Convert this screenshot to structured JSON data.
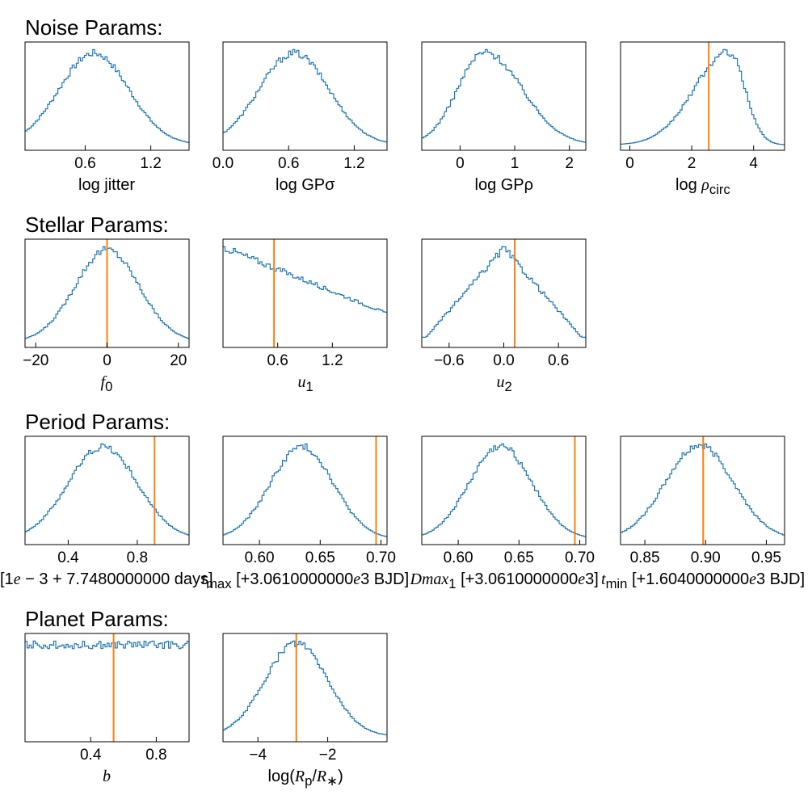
{
  "sections": [
    {
      "title": "Noise Params:"
    },
    {
      "title": "Stellar Params:"
    },
    {
      "title": "Period Params:"
    },
    {
      "title": "Planet Params:"
    }
  ],
  "colors": {
    "hist": "#1f77b4",
    "truth": "#ff7f0e"
  },
  "chart_data": [
    {
      "type": "histogram",
      "xlabel_html": "log jitter",
      "xlim": [
        0.05,
        1.55
      ],
      "ticks": [
        0.6,
        1.2
      ],
      "tick_labels": [
        "0.6",
        "1.2"
      ],
      "mode": 0.68,
      "shape": "gauss",
      "width": 0.32,
      "truth": null
    },
    {
      "type": "histogram",
      "xlabel_html": "log GPσ",
      "xlim": [
        0.0,
        1.5
      ],
      "ticks": [
        0.0,
        0.6,
        1.2
      ],
      "tick_labels": [
        "0.0",
        "0.6",
        "1.2"
      ],
      "mode": 0.65,
      "shape": "gauss",
      "width": 0.32,
      "truth": null
    },
    {
      "type": "histogram",
      "xlabel_html": "log GPρ",
      "xlim": [
        -0.7,
        2.3
      ],
      "ticks": [
        0,
        1,
        2
      ],
      "tick_labels": [
        "0",
        "1",
        "2"
      ],
      "mode": 0.45,
      "shape": "skew",
      "width": 0.55,
      "truth": null
    },
    {
      "type": "histogram",
      "xlabel_html": "log <i>ρ</i><sub>circ</sub>",
      "xlim": [
        -0.3,
        5.0
      ],
      "ticks": [
        0,
        2,
        4
      ],
      "tick_labels": [
        "0",
        "2",
        "4"
      ],
      "mode": 3.2,
      "shape": "leftskew",
      "width": 0.7,
      "truth": 2.55
    },
    {
      "type": "histogram",
      "xlabel_html": "<i>f</i><sub>0</sub>",
      "xlim": [
        -23,
        23
      ],
      "ticks": [
        -20,
        0,
        20
      ],
      "tick_labels": [
        "−20",
        "0",
        "20"
      ],
      "mode": 0,
      "shape": "gauss",
      "width": 9,
      "truth": 0
    },
    {
      "type": "histogram",
      "xlabel_html": "<i>u</i><sub>1</sub>",
      "xlim": [
        0,
        1.8
      ],
      "ticks": [
        0.6,
        1.2
      ],
      "tick_labels": [
        "0.6",
        "1.2"
      ],
      "mode": 0,
      "shape": "linear",
      "width": 0,
      "truth": 0.56
    },
    {
      "type": "histogram",
      "xlabel_html": "<i>u</i><sub>2</sub>",
      "xlim": [
        -0.9,
        0.9
      ],
      "ticks": [
        -0.6,
        0.0,
        0.6
      ],
      "tick_labels": [
        "−0.6",
        "0.0",
        "0.6"
      ],
      "mode": 0.0,
      "shape": "tent",
      "width": 0.9,
      "truth": 0.12
    },
    {
      "type": "histogram",
      "xlabel_html": "[1<i>e</i> − 3 + 7.7480000000  days]",
      "xlim": [
        0.15,
        1.1
      ],
      "ticks": [
        0.4,
        0.8
      ],
      "tick_labels": [
        "0.4",
        "0.8"
      ],
      "mode": 0.6,
      "shape": "gauss",
      "width": 0.2,
      "truth": 0.9
    },
    {
      "type": "histogram",
      "xlabel_html": "<i>t</i><sub>max</sub> [+3.0610000000<i>e</i>3  BJD]",
      "xlim": [
        0.57,
        0.705
      ],
      "ticks": [
        0.6,
        0.65,
        0.7
      ],
      "tick_labels": [
        "0.60",
        "0.65",
        "0.70"
      ],
      "mode": 0.635,
      "shape": "gauss",
      "width": 0.026,
      "truth": 0.696
    },
    {
      "type": "histogram",
      "xlabel_html": "<i>Dmax</i><sub>1</sub> [+3.0610000000<i>e</i>3]",
      "xlim": [
        0.57,
        0.705
      ],
      "ticks": [
        0.6,
        0.65,
        0.7
      ],
      "tick_labels": [
        "0.60",
        "0.65",
        "0.70"
      ],
      "mode": 0.635,
      "shape": "gauss",
      "width": 0.026,
      "truth": 0.696
    },
    {
      "type": "histogram",
      "xlabel_html": "<i>t</i><sub>min</sub> [+1.6040000000<i>e</i>3  BJD]",
      "xlim": [
        0.83,
        0.965
      ],
      "ticks": [
        0.85,
        0.9,
        0.95
      ],
      "tick_labels": [
        "0.85",
        "0.90",
        "0.95"
      ],
      "mode": 0.895,
      "shape": "gauss",
      "width": 0.028,
      "truth": 0.898
    },
    {
      "type": "histogram",
      "xlabel_html": "<i>b</i>",
      "xlim": [
        0,
        1.0
      ],
      "ticks": [
        0.4,
        0.8
      ],
      "tick_labels": [
        "0.4",
        "0.8"
      ],
      "mode": 0.5,
      "shape": "flat",
      "width": 0,
      "truth": 0.54
    },
    {
      "type": "histogram",
      "xlabel_html": "log(<i>R</i><sub>p</sub>/<i>R</i><sub>∗</sub>)",
      "xlim": [
        -5,
        -0.3
      ],
      "ticks": [
        -4,
        -2
      ],
      "tick_labels": [
        "−4",
        "−2"
      ],
      "mode": -2.9,
      "shape": "gauss",
      "width": 0.9,
      "truth": -2.9
    }
  ]
}
